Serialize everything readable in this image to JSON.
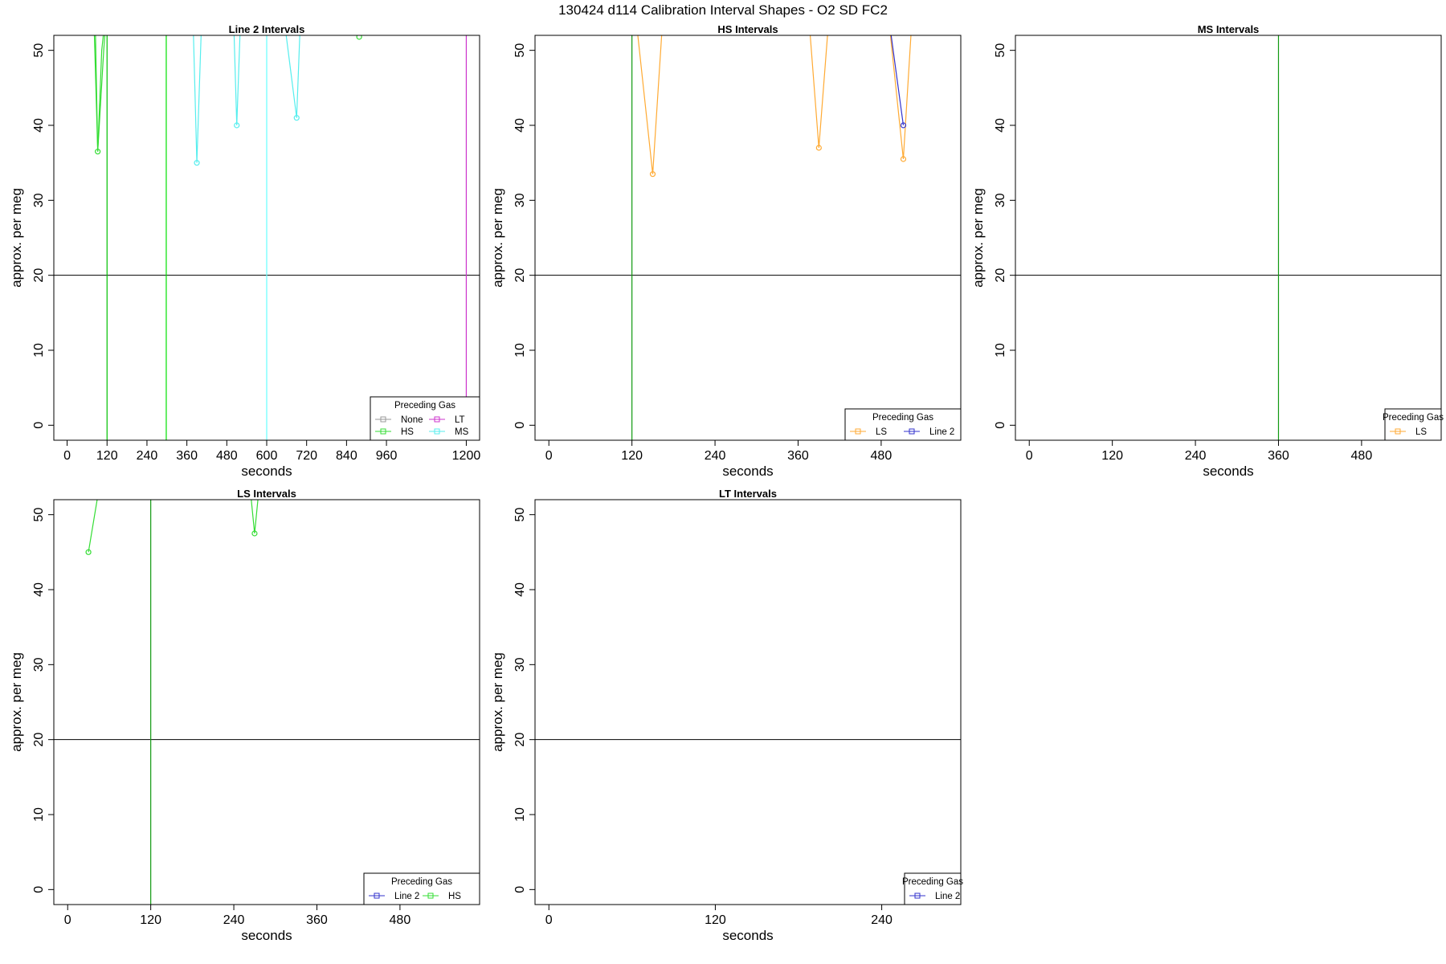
{
  "figure_title": "130424   d114   Calibration Interval Shapes - O2 SD FC2",
  "chart_data": [
    {
      "type": "line",
      "title": "Line 2 Intervals",
      "xlabel": "seconds",
      "ylabel": "approx. per meg",
      "xlim": [
        -40,
        1240
      ],
      "ylim": [
        -2,
        52
      ],
      "xticks": [
        0,
        120,
        240,
        360,
        480,
        600,
        720,
        840,
        960,
        1200
      ],
      "yticks": [
        0,
        10,
        20,
        30,
        40,
        50
      ],
      "hline": 20,
      "vlines": [
        {
          "x": 120,
          "color": "#00c000"
        },
        {
          "x": 298,
          "color": "#00e000"
        },
        {
          "x": 600,
          "color": "#66ffff"
        },
        {
          "x": 1200,
          "color": "#cc33cc"
        }
      ],
      "series": [
        {
          "name": "HS",
          "color": "#33dd33",
          "x": [
            80,
            92,
            104,
            116
          ],
          "y": [
            55,
            36.5,
            50,
            55
          ],
          "points": [
            [
              92,
              36.5
            ],
            [
              878,
              51.8
            ]
          ]
        },
        {
          "name": "HS",
          "color": "#33dd33",
          "x": [
            84,
            92,
            110,
            118
          ],
          "y": [
            55,
            36.5,
            50,
            55
          ],
          "points": []
        },
        {
          "name": "MS",
          "color": "#55eeee",
          "x": [
            378,
            390,
            405
          ],
          "y": [
            55,
            35,
            55
          ],
          "points": [
            [
              390,
              35
            ]
          ]
        },
        {
          "name": "MS",
          "color": "#55eeee",
          "x": [
            500,
            510,
            522
          ],
          "y": [
            55,
            40,
            55
          ],
          "points": [
            [
              510,
              40
            ]
          ]
        },
        {
          "name": "MS",
          "color": "#55eeee",
          "x": [
            650,
            690,
            702
          ],
          "y": [
            55,
            41,
            55
          ],
          "points": [
            [
              690,
              41
            ]
          ]
        }
      ],
      "legend": {
        "title": "Preceding Gas",
        "position": "bottom-right",
        "columns": 2,
        "entries": [
          {
            "name": "None",
            "color": "#999999"
          },
          {
            "name": "LT",
            "color": "#cc33cc"
          },
          {
            "name": "HS",
            "color": "#33dd33"
          },
          {
            "name": "MS",
            "color": "#55eeee"
          }
        ]
      }
    },
    {
      "type": "line",
      "title": "HS Intervals",
      "xlabel": "seconds",
      "ylabel": "approx. per meg",
      "xlim": [
        -20,
        595
      ],
      "ylim": [
        -2,
        52
      ],
      "xticks": [
        0,
        120,
        240,
        360,
        480
      ],
      "yticks": [
        0,
        10,
        20,
        30,
        40,
        50
      ],
      "hline": 20,
      "vlines": [
        {
          "x": 120,
          "color": "#119911"
        }
      ],
      "series": [
        {
          "name": "LS",
          "color": "#ffaa33",
          "x": [
            125,
            150,
            165
          ],
          "y": [
            55,
            33.5,
            55
          ],
          "points": [
            [
              150,
              33.5
            ]
          ]
        },
        {
          "name": "LS",
          "color": "#ffaa33",
          "x": [
            375,
            390,
            405
          ],
          "y": [
            55,
            37,
            55
          ],
          "points": [
            [
              390,
              37
            ]
          ]
        },
        {
          "name": "LS",
          "color": "#ffaa33",
          "x": [
            490,
            512,
            525
          ],
          "y": [
            55,
            35.5,
            55
          ],
          "points": [
            [
              512,
              35.5
            ]
          ]
        },
        {
          "name": "Line 2",
          "color": "#3333cc",
          "x": [
            490,
            512
          ],
          "y": [
            55,
            40
          ],
          "points": [
            [
              512,
              40
            ]
          ]
        }
      ],
      "legend": {
        "title": "Preceding Gas",
        "position": "bottom-right",
        "columns": 2,
        "entries": [
          {
            "name": "LS",
            "color": "#ffaa33"
          },
          {
            "name": "Line 2",
            "color": "#3333cc"
          }
        ]
      }
    },
    {
      "type": "line",
      "title": "MS Intervals",
      "xlabel": "seconds",
      "ylabel": "approx. per meg",
      "xlim": [
        -20,
        595
      ],
      "ylim": [
        -2,
        52
      ],
      "xticks": [
        0,
        120,
        240,
        360,
        480
      ],
      "yticks": [
        0,
        10,
        20,
        30,
        40,
        50
      ],
      "hline": 20,
      "vlines": [
        {
          "x": 360,
          "color": "#119911"
        }
      ],
      "series": [],
      "legend": {
        "title": "Preceding Gas",
        "position": "bottom-right",
        "columns": 1,
        "entries": [
          {
            "name": "LS",
            "color": "#ffaa33"
          }
        ]
      }
    },
    {
      "type": "line",
      "title": "LS Intervals",
      "xlabel": "seconds",
      "ylabel": "approx. per meg",
      "xlim": [
        -20,
        595
      ],
      "ylim": [
        -2,
        52
      ],
      "xticks": [
        0,
        120,
        240,
        360,
        480
      ],
      "yticks": [
        0,
        10,
        20,
        30,
        40,
        50
      ],
      "hline": 20,
      "vlines": [
        {
          "x": 120,
          "color": "#119911"
        }
      ],
      "series": [
        {
          "name": "HS",
          "color": "#33dd33",
          "x": [
            30,
            48
          ],
          "y": [
            45,
            55
          ],
          "points": [
            [
              30,
              45
            ]
          ]
        },
        {
          "name": "HS",
          "color": "#33dd33",
          "x": [
            262,
            270,
            278
          ],
          "y": [
            55,
            47.5,
            55
          ],
          "points": [
            [
              270,
              47.5
            ]
          ]
        }
      ],
      "legend": {
        "title": "Preceding Gas",
        "position": "bottom-right",
        "columns": 2,
        "entries": [
          {
            "name": "Line 2",
            "color": "#3333cc"
          },
          {
            "name": "HS",
            "color": "#33dd33"
          }
        ]
      }
    },
    {
      "type": "line",
      "title": "LT Intervals",
      "xlabel": "seconds",
      "ylabel": "approx. per meg",
      "xlim": [
        -10,
        297
      ],
      "ylim": [
        -2,
        52
      ],
      "xticks": [
        0,
        120,
        240
      ],
      "yticks": [
        0,
        10,
        20,
        30,
        40,
        50
      ],
      "hline": 20,
      "vlines": [],
      "series": [],
      "legend": {
        "title": "Preceding Gas",
        "position": "bottom-right",
        "columns": 1,
        "entries": [
          {
            "name": "Line 2",
            "color": "#3333cc"
          }
        ]
      }
    }
  ]
}
